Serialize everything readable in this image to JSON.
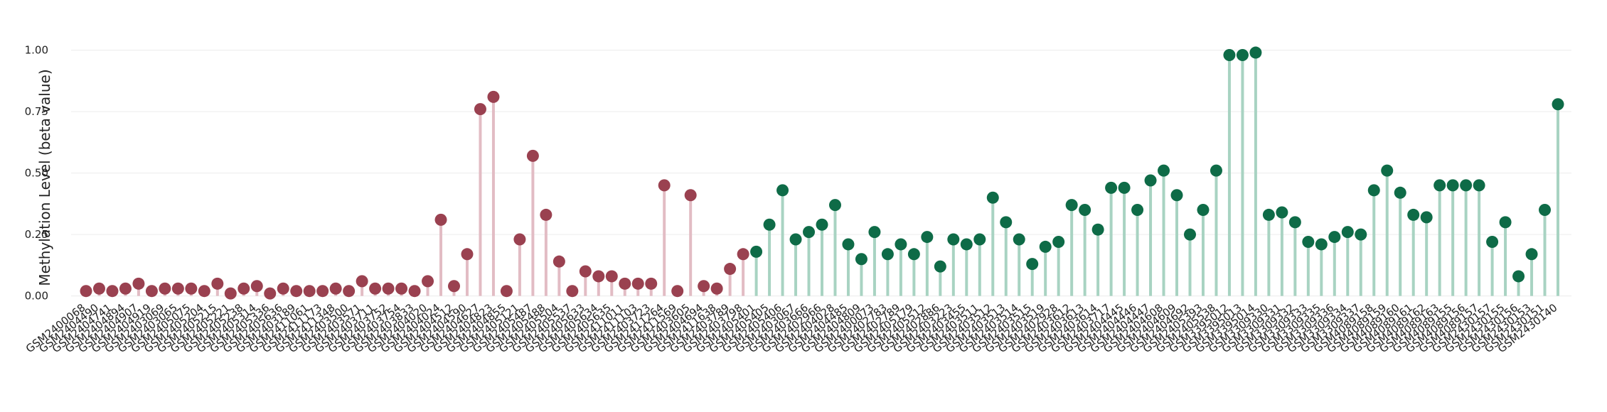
{
  "chart_data": {
    "type": "lollipop",
    "y_label": "Methylation Level (beta value)",
    "ylim": [
      -0.03,
      1.1
    ],
    "yticks": [
      {
        "value": 0,
        "label": "0.00"
      },
      {
        "value": 0.25,
        "label": "0.25"
      },
      {
        "value": 0.5,
        "label": "0.50"
      },
      {
        "value": 0.75,
        "label": "0.75"
      },
      {
        "value": 1,
        "label": "1.00"
      }
    ],
    "grid": true,
    "categories": [
      "GSM2400068",
      "GSM2404490",
      "GSM2404741",
      "GSM2404894",
      "GSM2404907",
      "GSM2404919",
      "GSM2403069",
      "GSM2403065",
      "GSM2405075",
      "GSM2405204",
      "GSM2405215",
      "GSM2405221",
      "GSM2405238",
      "GSM2405314",
      "GSM2405336",
      "GSM2405636",
      "GSM2403189",
      "GSM2411061",
      "GSM2411173",
      "GSM2411348",
      "GSM2403500",
      "GSM2403571",
      "GSM2403711",
      "GSM2403752",
      "GSM2403754",
      "GSM2403833",
      "GSM2404020",
      "GSM2404024",
      "GSM2404512",
      "GSM2404590",
      "GSM2404627",
      "GSM2404823",
      "GSM2404855",
      "GSM2405121",
      "GSM2405487",
      "GSM2405488",
      "GSM2405504",
      "GSM2405537",
      "GSM2405633",
      "GSM2405634",
      "GSM2405635",
      "GSM2411011",
      "GSM2411103",
      "GSM2403723",
      "GSM2411264",
      "GSM2411569",
      "GSM2403605",
      "GSM2404694",
      "GSM2411638",
      "GSM2403789",
      "GSM2403798",
      "GSM2405401",
      "GSM2405405",
      "GSM2405406",
      "GSM2403067",
      "GSM2403666",
      "GSM2402966",
      "GSM2404028",
      "GSM2404485",
      "GSM2404809",
      "GSM2400073",
      "GSM2402783",
      "GSM2402789",
      "GSM2405179",
      "GSM2405512",
      "GSM2402886",
      "GSM2403223",
      "GSM2403455",
      "GSM2403511",
      "GSM2403512",
      "GSM2403513",
      "GSM2403514",
      "GSM2403515",
      "GSM2403519",
      "GSM2402928",
      "GSM2403612",
      "GSM2403613",
      "GSM2403614",
      "GSM2403717",
      "GSM2404445",
      "GSM2404446",
      "GSM2404447",
      "GSM2404608",
      "GSM2404609",
      "GSM2404692",
      "GSM2405393",
      "GSM2405538",
      "GSM3395012",
      "GSM3395013",
      "GSM3395014",
      "GSM3309330",
      "GSM3309331",
      "GSM3309332",
      "GSM3309333",
      "GSM3309335",
      "GSM3309336",
      "GSM3309334",
      "GSM3309337",
      "GSM4089158",
      "GSM4089159",
      "GSM4089160",
      "GSM4089161",
      "GSM4089162",
      "GSM4089163",
      "GSM4089155",
      "GSM4089156",
      "GSM4089157",
      "GSM2430157",
      "GSM2430155",
      "GSM2430156",
      "GSM2430153",
      "GSM2430151",
      "GSM2430140"
    ],
    "series": [
      {
        "color": "#9a4150",
        "stem_color": "#e2bcc4",
        "values": [
          0.02,
          0.03,
          0.02,
          0.03,
          0.05,
          0.02,
          0.03,
          0.03,
          0.03,
          0.02,
          0.05,
          0.01,
          0.03,
          0.04,
          0.01,
          0.03,
          0.02,
          0.02,
          0.02,
          0.03,
          0.02,
          0.06,
          0.03,
          0.03,
          0.03,
          0.02,
          0.06,
          0.31,
          0.04,
          0.17,
          0.76,
          0.81,
          0.02,
          0.23,
          0.57,
          0.33,
          0.14,
          0.02,
          0.1,
          0.08,
          0.08,
          0.05,
          0.05,
          0.05,
          0.45,
          0.02,
          0.41,
          0.04,
          0.03,
          0.11,
          0.17,
          null,
          null,
          null,
          null,
          null,
          null,
          null,
          null,
          null,
          null,
          null,
          null,
          null,
          null,
          null,
          null,
          null,
          null,
          null,
          null,
          null,
          null,
          null,
          null,
          null,
          null,
          null,
          null,
          null,
          null,
          null,
          null,
          null,
          null,
          null,
          null,
          null,
          null,
          null,
          null,
          null,
          null,
          null,
          null,
          null,
          null,
          null,
          null,
          null,
          null,
          null,
          null,
          null,
          null,
          null,
          null,
          null,
          null,
          null,
          null,
          null,
          null
        ]
      },
      {
        "color": "#0e6b47",
        "stem_color": "#a8d3c2",
        "values": [
          null,
          null,
          null,
          null,
          null,
          null,
          null,
          null,
          null,
          null,
          null,
          null,
          null,
          null,
          null,
          null,
          null,
          null,
          null,
          null,
          null,
          null,
          null,
          null,
          null,
          null,
          null,
          null,
          null,
          null,
          null,
          null,
          null,
          null,
          null,
          null,
          null,
          null,
          null,
          null,
          null,
          null,
          null,
          null,
          null,
          null,
          null,
          null,
          null,
          null,
          null,
          0.18,
          0.29,
          0.43,
          0.23,
          0.26,
          0.29,
          0.37,
          0.21,
          0.15,
          0.26,
          0.17,
          0.21,
          0.17,
          0.24,
          0.12,
          0.23,
          0.21,
          0.23,
          0.4,
          0.3,
          0.23,
          0.13,
          0.2,
          0.22,
          0.37,
          0.35,
          0.27,
          0.44,
          0.44,
          0.35,
          0.47,
          0.51,
          0.41,
          0.25,
          0.35,
          0.51,
          0.98,
          0.98,
          0.99,
          0.33,
          0.34,
          0.3,
          0.22,
          0.21,
          0.24,
          0.26,
          0.25,
          0.43,
          0.51,
          0.42,
          0.33,
          0.32,
          0.45,
          0.45,
          0.45,
          0.45,
          0.22,
          0.3,
          0.08,
          0.17,
          0.35,
          0.78
        ]
      }
    ]
  }
}
